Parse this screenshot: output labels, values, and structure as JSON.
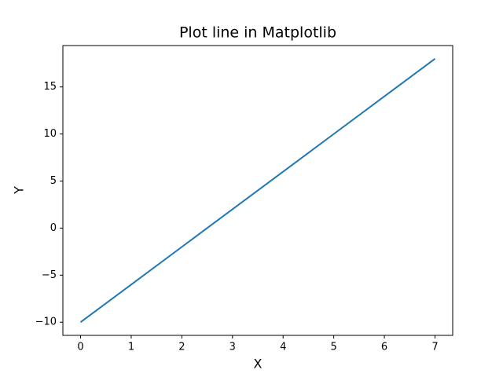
{
  "chart_data": {
    "type": "line",
    "title": "Plot line in Matplotlib",
    "x_label": "X",
    "y_label": "Y",
    "x": [
      0,
      1,
      2,
      3,
      4,
      5,
      6,
      7
    ],
    "series": [
      {
        "color": "#1f77b4",
        "values": [
          -10,
          -6,
          -2,
          2,
          6,
          10,
          14,
          18
        ]
      }
    ],
    "xlim": [
      -0.35,
      7.35
    ],
    "ylim": [
      -11.4,
      19.4
    ],
    "xticks": [
      0,
      1,
      2,
      3,
      4,
      5,
      6,
      7
    ],
    "yticks": [
      {
        "value": -10,
        "label": "−10"
      },
      {
        "value": -5,
        "label": "−5"
      },
      0,
      5,
      10,
      15
    ],
    "grid": false
  }
}
